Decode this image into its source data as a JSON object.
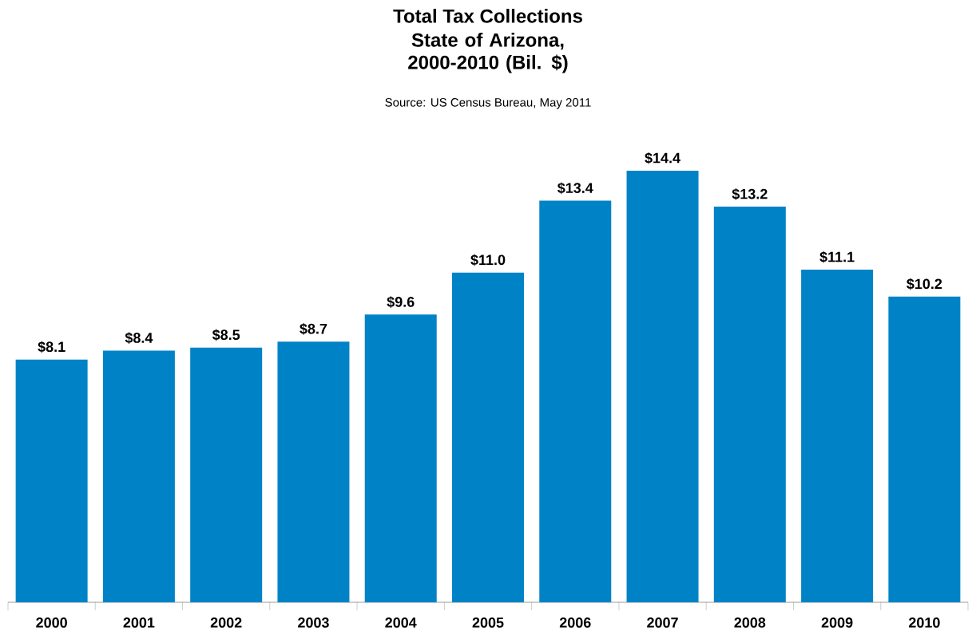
{
  "chart_data": {
    "type": "bar",
    "title": "Total Tax Collections",
    "subtitle": "State of Arizona, 2000-2010 (Bil. $)",
    "annotations": [
      "Source:  US Census Bureau, May 2011"
    ],
    "categories": [
      "2000",
      "2001",
      "2002",
      "2003",
      "2004",
      "2005",
      "2006",
      "2007",
      "2008",
      "2009",
      "2010"
    ],
    "values": [
      8.1,
      8.4,
      8.5,
      8.7,
      9.6,
      11.0,
      13.4,
      14.4,
      13.2,
      11.1,
      10.2
    ],
    "value_labels": [
      "$8.1",
      "$8.4",
      "$8.5",
      "$8.7",
      "$9.6",
      "$11.0",
      "$13.4",
      "$14.4",
      "$13.2",
      "$11.1",
      "$10.2"
    ],
    "color": "#0083c6"
  }
}
